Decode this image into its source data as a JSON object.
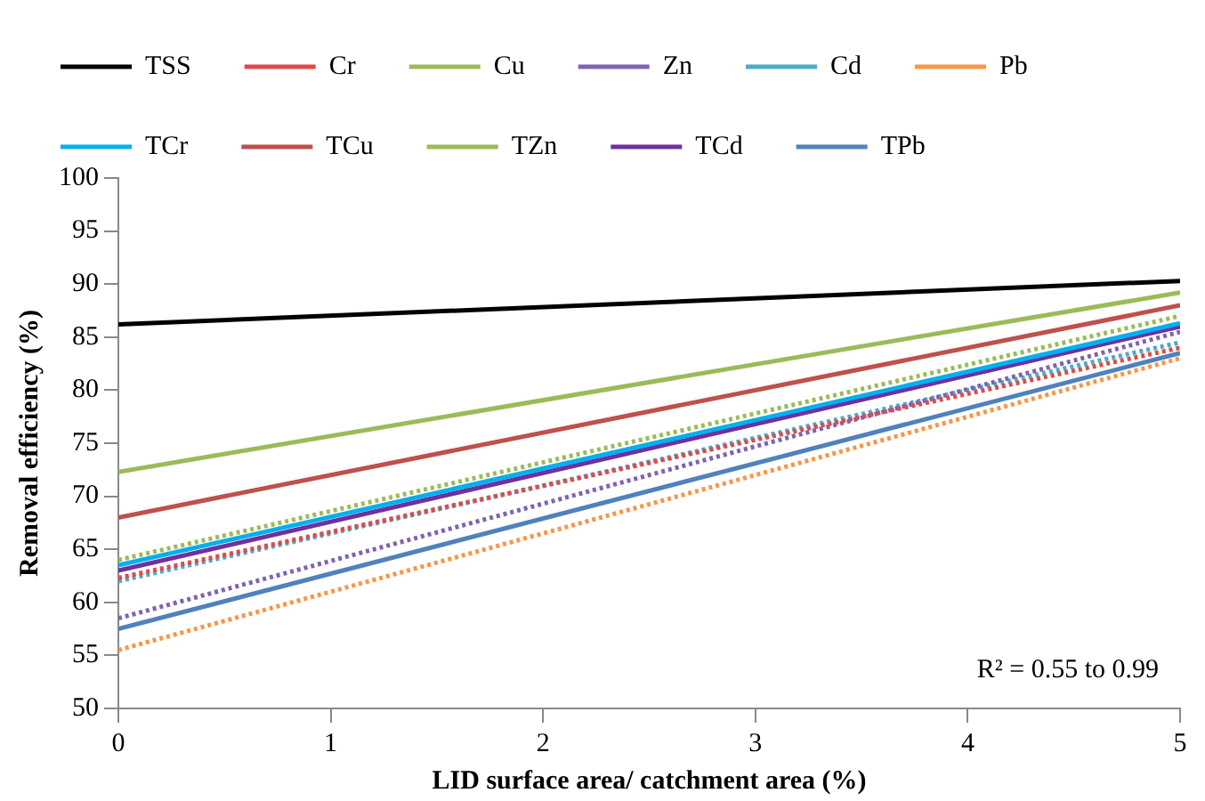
{
  "chart_data": {
    "type": "line",
    "xlabel": "LID surface area/ catchment area (%)",
    "ylabel": "Removal efficiency (%)",
    "x": [
      0,
      5
    ],
    "xlim": [
      0,
      5
    ],
    "xticks": [
      0,
      1,
      2,
      3,
      4,
      5
    ],
    "ylim": [
      50,
      100
    ],
    "yticks": [
      50,
      55,
      60,
      65,
      70,
      75,
      80,
      85,
      90,
      95,
      100
    ],
    "grid": false,
    "legend": "top",
    "marker": "none",
    "annotations": [
      "R² = 0.55 to 0.99"
    ],
    "series": [
      {
        "name": "TSS",
        "color": "#000000",
        "line_style": "solid",
        "values": [
          86.2,
          90.3
        ]
      },
      {
        "name": "Cr",
        "color": "#e04a4a",
        "line_style": "dotted",
        "values": [
          62.3,
          84
        ]
      },
      {
        "name": "Cu",
        "color": "#9bbb59",
        "line_style": "dotted",
        "values": [
          64,
          87
        ]
      },
      {
        "name": "Zn",
        "color": "#7f63b0",
        "line_style": "dotted",
        "values": [
          58.5,
          85.5
        ]
      },
      {
        "name": "Cd",
        "color": "#4bacc6",
        "line_style": "dotted",
        "values": [
          62,
          84.5
        ]
      },
      {
        "name": "Pb",
        "color": "#f79646",
        "line_style": "dotted",
        "values": [
          55.5,
          83
        ]
      },
      {
        "name": "TCr",
        "color": "#00b0f0",
        "line_style": "solid",
        "values": [
          63.5,
          86.3
        ]
      },
      {
        "name": "TCu",
        "color": "#c0504d",
        "line_style": "solid",
        "values": [
          68,
          88
        ]
      },
      {
        "name": "TZn",
        "color": "#9bbb59",
        "line_style": "solid",
        "values": [
          72.3,
          89.2
        ]
      },
      {
        "name": "TCd",
        "color": "#7030a0",
        "line_style": "solid",
        "values": [
          63,
          86
        ]
      },
      {
        "name": "TPb",
        "color": "#4f81bd",
        "line_style": "solid",
        "values": [
          57.5,
          83.5
        ]
      }
    ]
  }
}
